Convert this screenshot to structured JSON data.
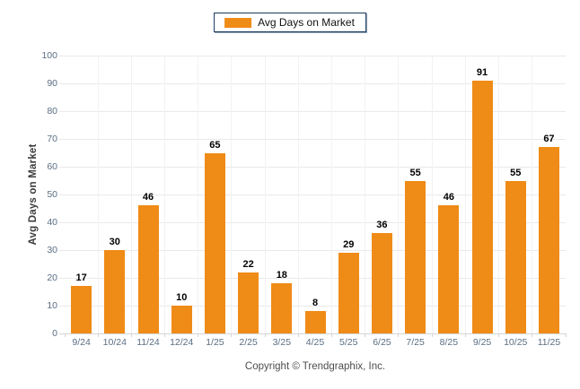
{
  "legend": {
    "label": "Avg Days on Market",
    "swatch": "orange-square"
  },
  "chart_data": {
    "type": "bar",
    "title": "",
    "categories": [
      "9/24",
      "10/24",
      "11/24",
      "12/24",
      "1/25",
      "2/25",
      "3/25",
      "4/25",
      "5/25",
      "6/25",
      "7/25",
      "8/25",
      "9/25",
      "10/25",
      "11/25"
    ],
    "values": [
      17,
      30,
      46,
      10,
      65,
      22,
      18,
      8,
      29,
      36,
      55,
      46,
      91,
      55,
      67
    ],
    "series_name": "Avg Days on Market",
    "xlabel": "",
    "ylabel": "Avg Days on Market",
    "ylim": [
      0,
      100
    ],
    "yticks": [
      0,
      10,
      20,
      30,
      40,
      50,
      60,
      70,
      80,
      90,
      100
    ],
    "grid": "horizontal-light",
    "legend_position": "top-center",
    "value_labels": true
  },
  "footer": {
    "copyright": "Copyright © Trendgraphix, Inc."
  },
  "colors": {
    "bar": "#EF8B17",
    "legend_border": "#17375D",
    "gridline": "#E9E9E9",
    "vgridline": "#F2F2F2",
    "axis_line": "#D5D5D5",
    "tick_label": "#5A6E82",
    "value_label": "#000000",
    "y_title": "#3D3D3D",
    "footer_text": "#4D4D4D",
    "bg": "#FFFFFF"
  }
}
